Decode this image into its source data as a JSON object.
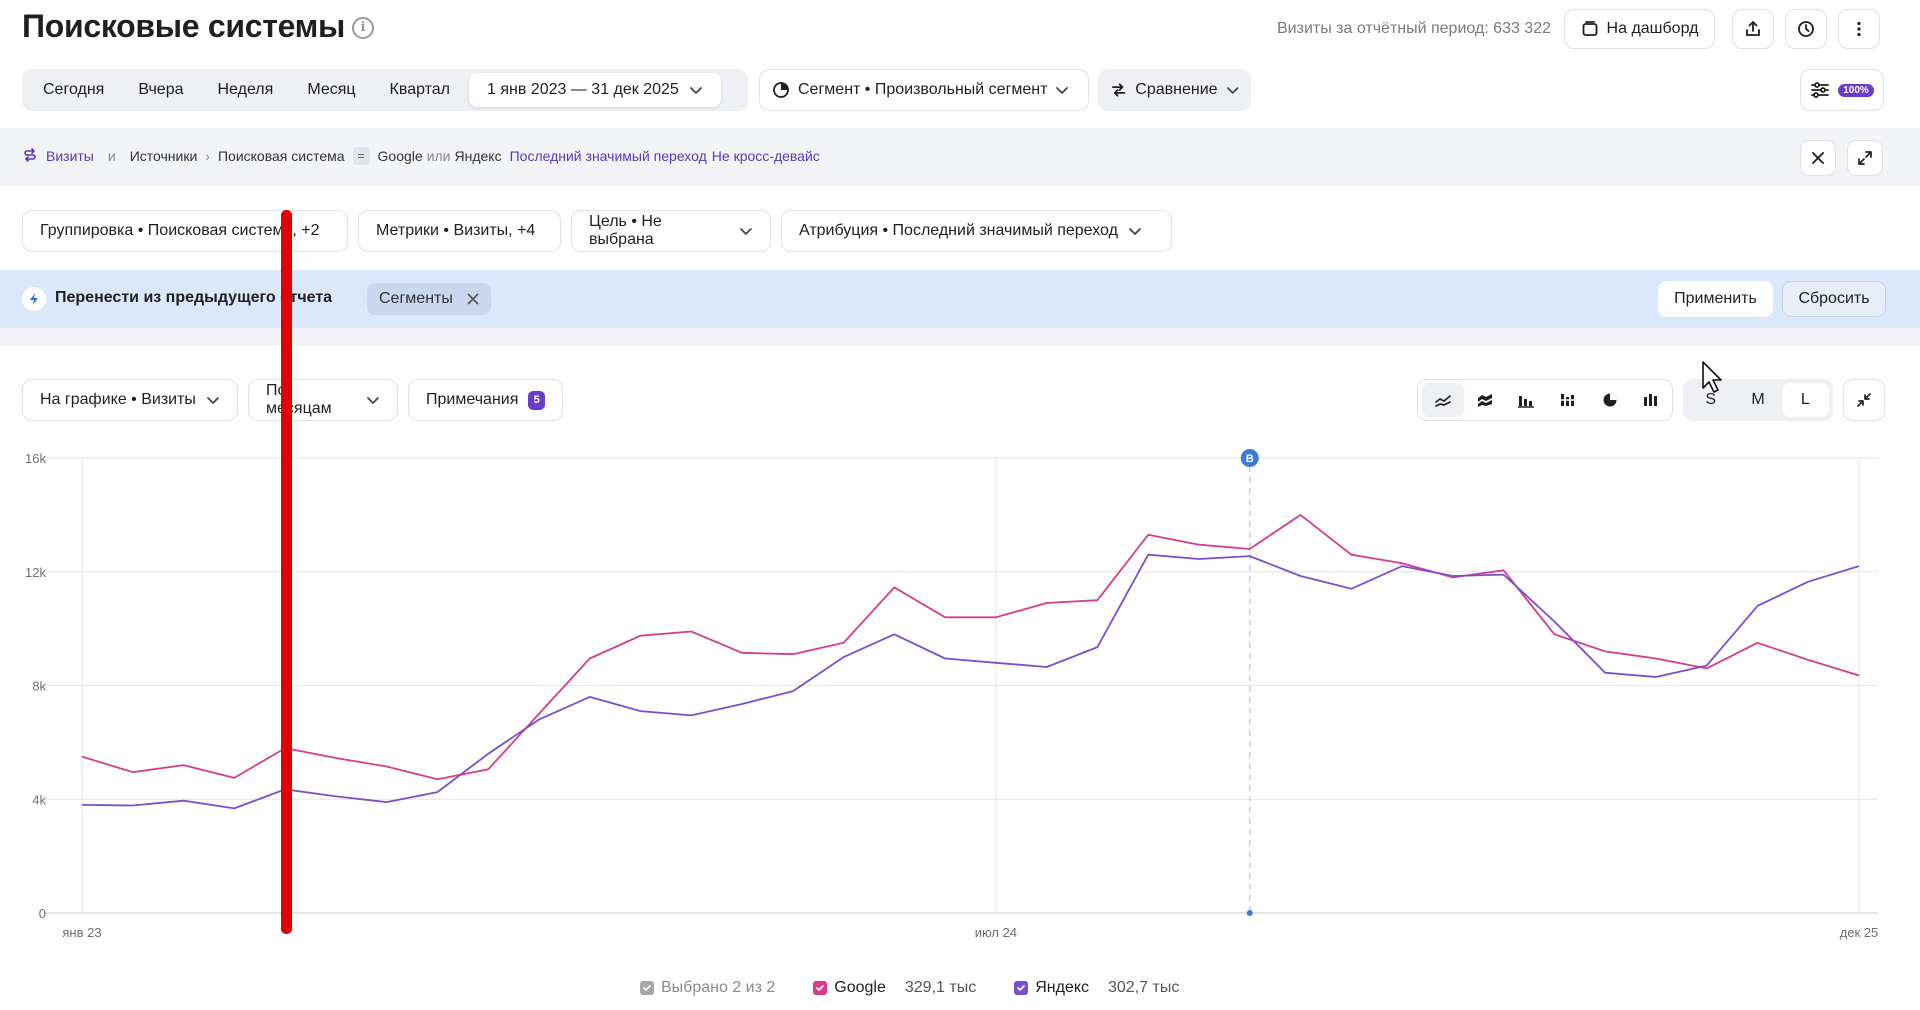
{
  "header": {
    "title": "Поисковые системы",
    "visits_total": "Визиты за отчётный период: 633 322",
    "dashboard_label": "На дашборд"
  },
  "period": {
    "items": [
      "Сегодня",
      "Вчера",
      "Неделя",
      "Месяц",
      "Квартал"
    ],
    "date_range": "1 янв 2023 — 31 дек 2025",
    "segment_label": "Сегмент • Произвольный сегмент",
    "comparison_label": "Сравнение",
    "sampling_badge": "100%"
  },
  "filter": {
    "visits": "Визиты",
    "and": "и",
    "sources": "Источники",
    "search_system": "Поисковая система",
    "eq": "=",
    "google": "Google",
    "or": "или",
    "yandex": "Яндекс",
    "last_click": "Последний значимый переход",
    "cross_device": "Не кросс-девайс"
  },
  "grouping": {
    "group_label": "Группировка • Поисковая система, +2",
    "metrics_label": "Метрики • Визиты, +4",
    "goal_label": "Цель • Не выбрана",
    "attribution_label": "Атрибуция • Последний значимый переход"
  },
  "banner": {
    "text": "Перенести из предыдущего отчета",
    "tag": "Сегменты",
    "apply": "Применить",
    "reset": "Сбросить"
  },
  "chart_controls": {
    "on_chart": "На графике • Визиты",
    "by_months": "По месяцам",
    "notes": "Примечания",
    "notes_count": "5",
    "sizes": [
      "S",
      "M",
      "L"
    ],
    "active_size": "L"
  },
  "chart_data": {
    "type": "line",
    "x_tick_labels": [
      "янв 23",
      "июл 24",
      "дек 25"
    ],
    "y_tick_labels": [
      "0",
      "4k",
      "8k",
      "12k",
      "16k"
    ],
    "ylim": [
      0,
      16000
    ],
    "note_marker": "В",
    "series": [
      {
        "name": "Google",
        "color": "#d63c8e",
        "values": [
          5500,
          4950,
          5200,
          4750,
          5800,
          5450,
          5150,
          4700,
          5050,
          7000,
          8950,
          9750,
          9900,
          9150,
          9100,
          9500,
          11450,
          10400,
          10400,
          10900,
          11000,
          13300,
          12950,
          12800,
          14000,
          12600,
          12300,
          11800,
          12050,
          9800,
          9200,
          8950,
          8600,
          9500,
          8900,
          8350
        ]
      },
      {
        "name": "Яндекс",
        "color": "#7b4fcc",
        "values": [
          3800,
          3780,
          3950,
          3680,
          4350,
          4100,
          3900,
          4250,
          5600,
          6800,
          7600,
          7100,
          6950,
          7350,
          7800,
          9000,
          9800,
          8950,
          8800,
          8650,
          9350,
          12600,
          12450,
          12550,
          11850,
          11400,
          12200,
          11850,
          11900,
          10250,
          8450,
          8300,
          8700,
          10800,
          11650,
          12200
        ]
      }
    ],
    "grid": true
  },
  "legend": {
    "selected": "Выбрано 2 из 2",
    "google": "Google",
    "google_value": "329,1 тыс",
    "yandex": "Яндекс",
    "yandex_value": "302,7 тыс"
  }
}
